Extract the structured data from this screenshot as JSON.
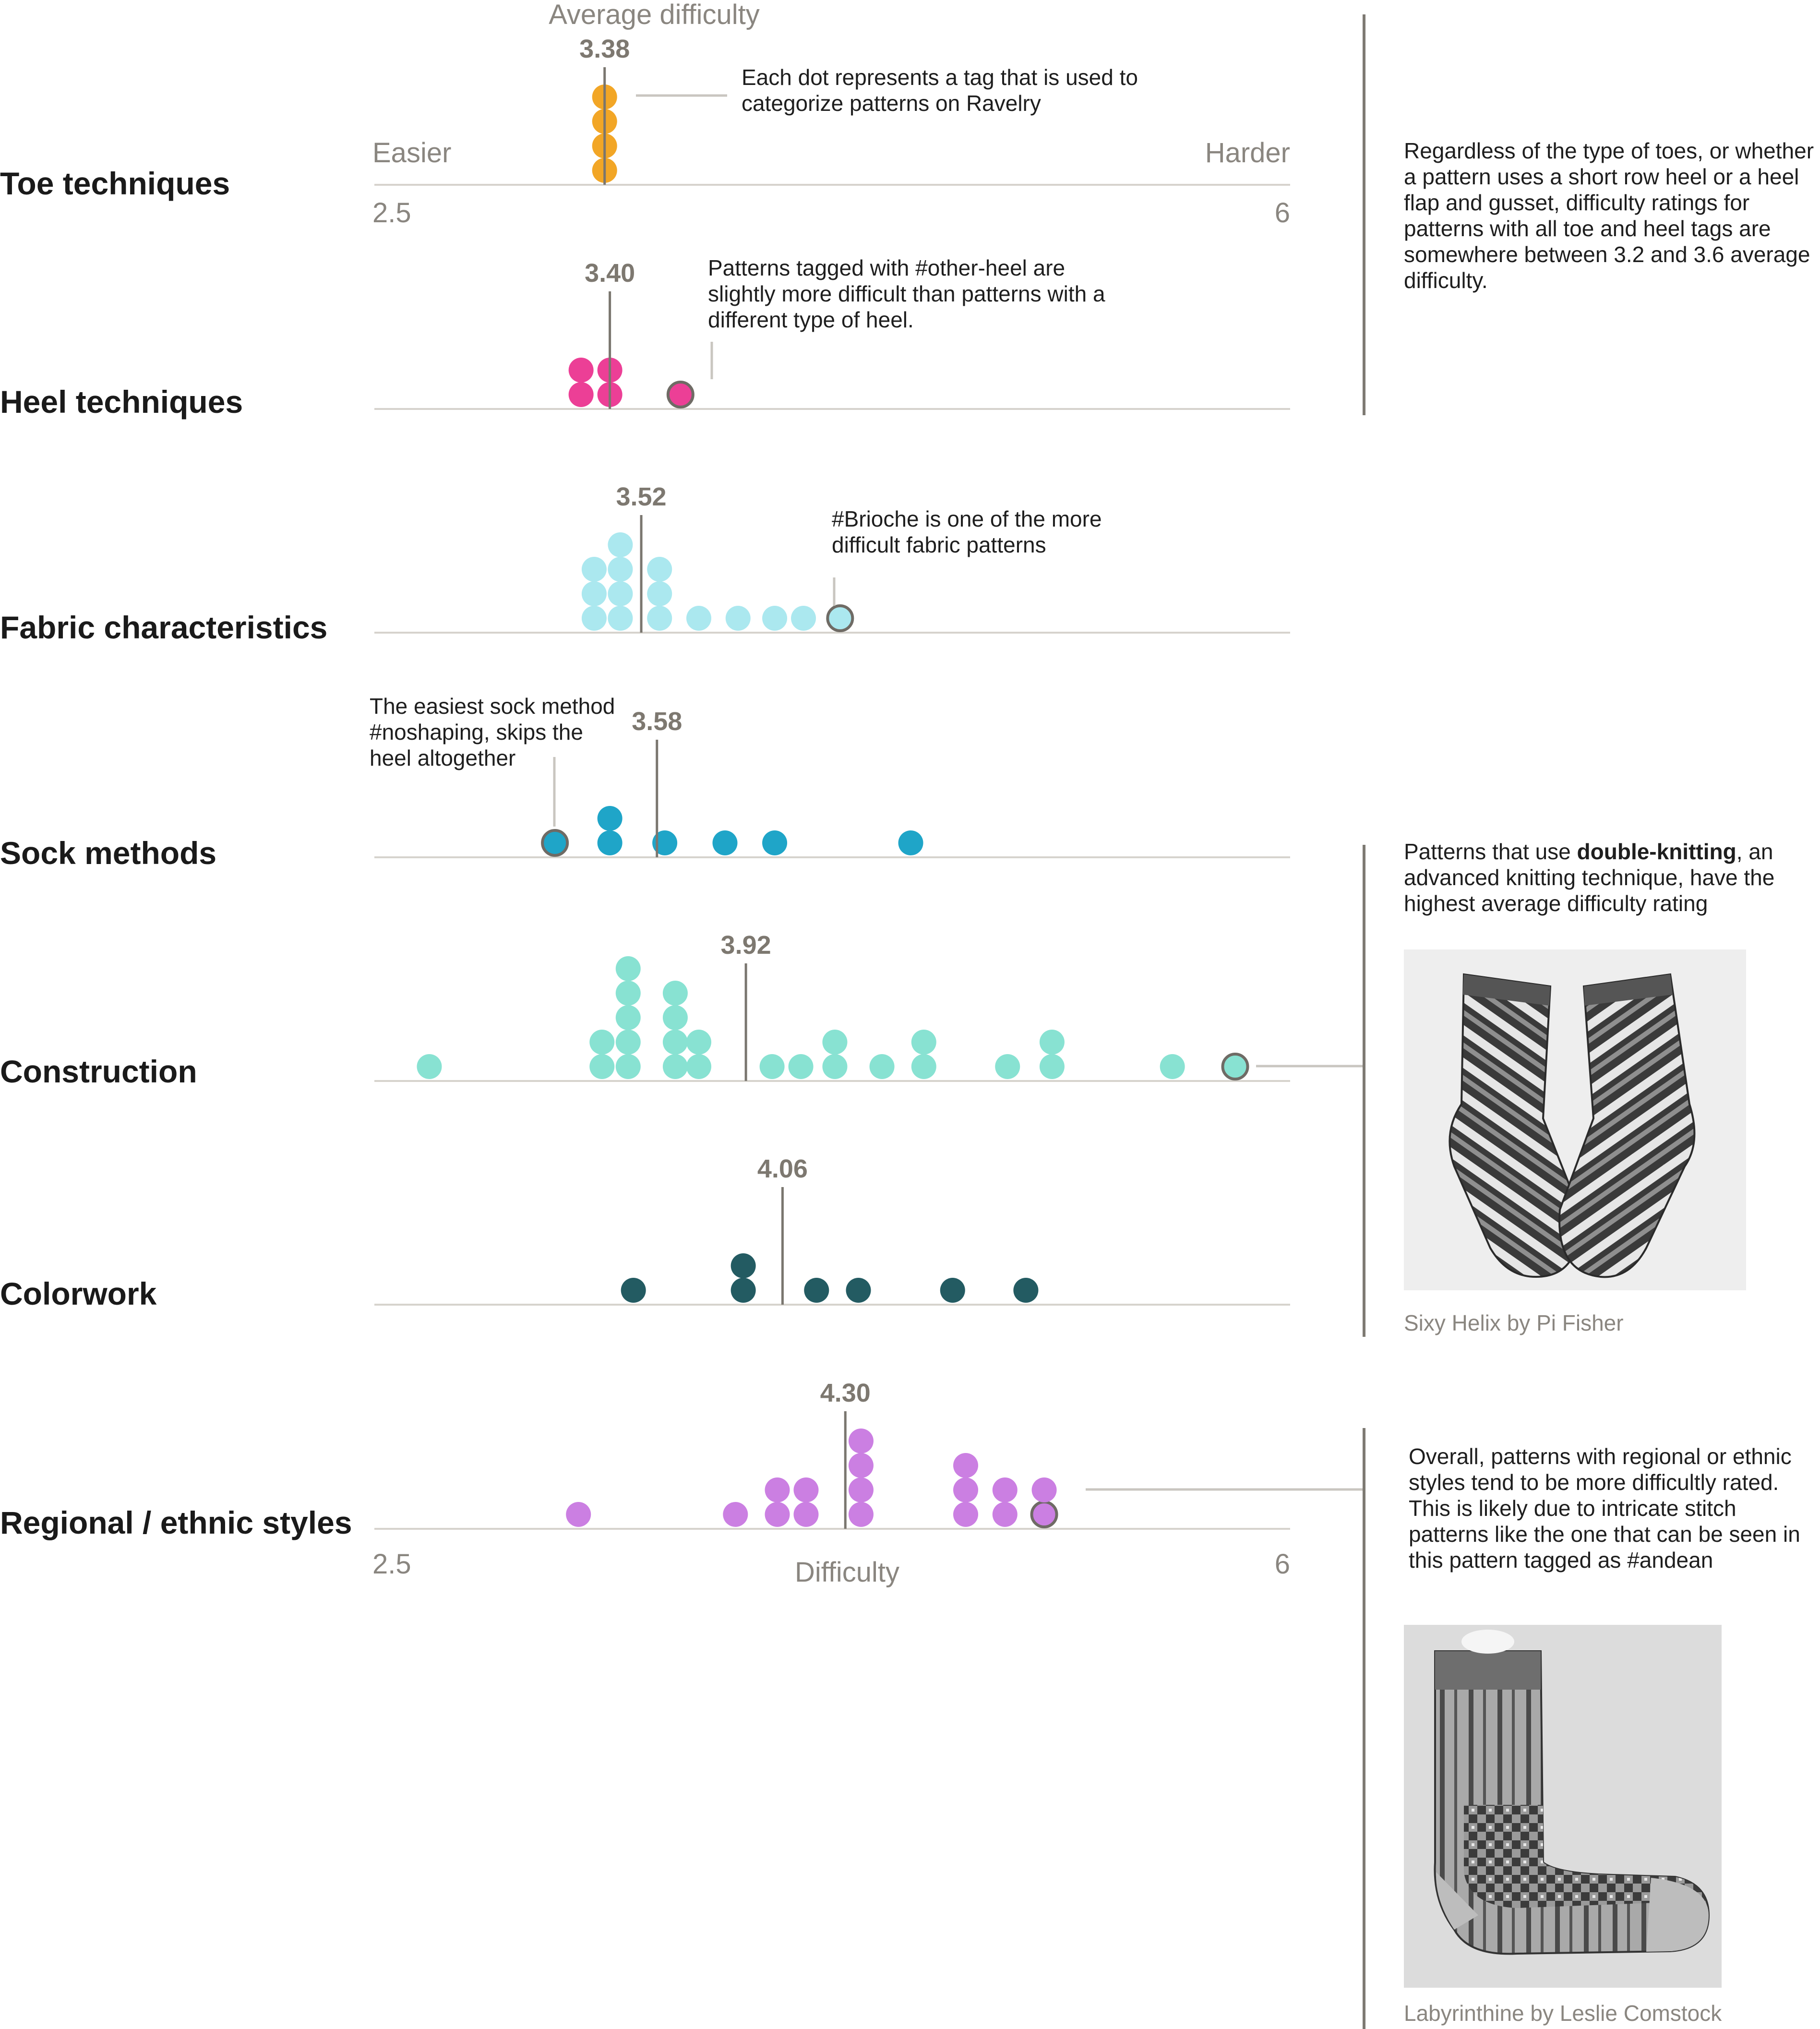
{
  "chart_data": {
    "type": "dot-strip",
    "header": "Average difficulty",
    "axis": {
      "min": 2.5,
      "max": 6,
      "easier_label": "Easier",
      "harder_label": "Harder",
      "tick_min_label": "2.5",
      "tick_max_label": "6",
      "xlabel": "Difficulty"
    },
    "rows": [
      {
        "name": "Toe techniques",
        "color": "#f2a626",
        "average": 3.38,
        "average_label": "3.38",
        "dots": [
          3.38,
          3.38,
          3.38,
          3.38
        ],
        "highlight": null
      },
      {
        "name": "Heel techniques",
        "color": "#ec3f96",
        "average": 3.4,
        "average_label": "3.40",
        "dots": [
          3.29,
          3.29,
          3.4,
          3.4,
          3.67
        ],
        "highlight": 3.67
      },
      {
        "name": "Fabric characteristics",
        "color": "#abe8ef",
        "average": 3.52,
        "average_label": "3.52",
        "dots": [
          3.34,
          3.34,
          3.34,
          3.44,
          3.44,
          3.44,
          3.44,
          3.59,
          3.59,
          3.59,
          3.74,
          3.89,
          4.03,
          4.14,
          4.28
        ],
        "highlight": 4.28
      },
      {
        "name": "Sock methods",
        "color": "#1fa5c8",
        "average": 3.58,
        "average_label": "3.58",
        "dots": [
          3.19,
          3.4,
          3.4,
          3.61,
          3.84,
          4.03,
          4.55
        ],
        "highlight": 3.19
      },
      {
        "name": "Construction",
        "color": "#88e2d2",
        "average": 3.92,
        "average_label": "3.92",
        "dots": [
          2.71,
          3.37,
          3.37,
          3.47,
          3.47,
          3.47,
          3.47,
          3.47,
          3.65,
          3.65,
          3.65,
          3.65,
          3.74,
          3.74,
          4.02,
          4.13,
          4.26,
          4.26,
          4.44,
          4.6,
          4.6,
          4.92,
          5.09,
          5.09,
          5.55,
          5.79
        ],
        "highlight": 5.79
      },
      {
        "name": "Colorwork",
        "color": "#235b62",
        "average": 4.06,
        "average_label": "4.06",
        "dots": [
          3.49,
          3.91,
          3.91,
          4.19,
          4.35,
          4.71,
          4.99
        ],
        "highlight": null
      },
      {
        "name": "Regional / ethnic styles",
        "color": "#cb7fe2",
        "average": 4.3,
        "average_label": "4.30",
        "dots": [
          3.28,
          3.88,
          4.04,
          4.04,
          4.15,
          4.15,
          4.36,
          4.36,
          4.36,
          4.36,
          4.76,
          4.76,
          4.76,
          4.91,
          4.91,
          5.06,
          5.06
        ],
        "highlight": 5.06
      }
    ],
    "annotations": {
      "toe": "Each dot represents a tag that is used to categorize patterns on Ravelry",
      "heel": "Patterns tagged with #other-heel are slightly more difficult than patterns with a different type of heel.",
      "fabric": "#Brioche is one of the more difficult fabric patterns",
      "sock": "The easiest sock method #noshaping, skips the heel altogether"
    }
  },
  "sidebar": {
    "note1": "Regardless of the type of toes, or whether a pattern uses a short row heel or a heel flap and gusset, difficulty ratings for patterns with all toe and heel tags are somewhere between 3.2 and 3.6 average difficulty.",
    "note2_pre": "Patterns that use ",
    "note2_bold": "double-knitting",
    "note2_post": ", an advanced knitting technique, have the highest average difficulty rating",
    "photo1_credit": "Sixy Helix by Pi Fisher",
    "note3": "Overall, patterns with regional or ethnic styles tend to be more difficultly rated. This is likely due to intricate stitch patterns like the one that can be seen in this pattern tagged as #andean",
    "photo2_credit": "Labyrinthine by Leslie Comstock"
  }
}
